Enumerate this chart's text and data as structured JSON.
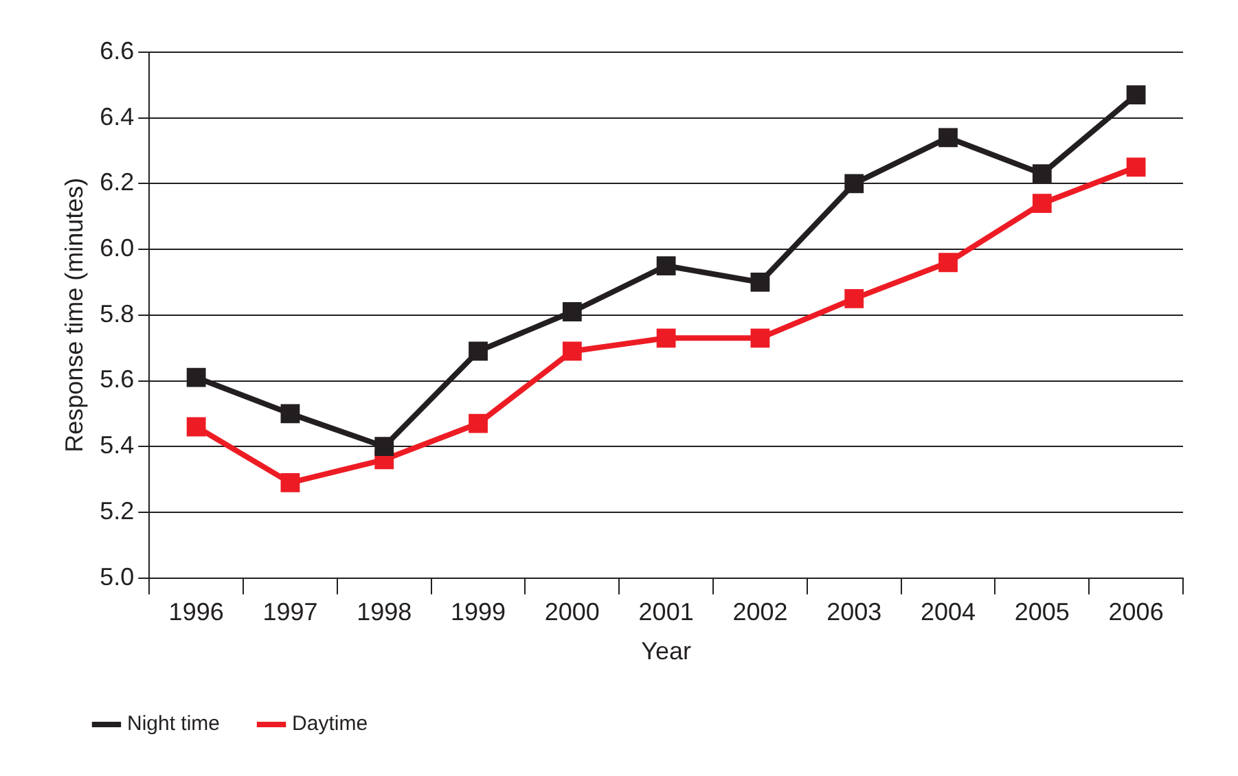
{
  "chart_data": {
    "type": "line",
    "xlabel": "Year",
    "ylabel": "Response time (minutes)",
    "categories": [
      "1996",
      "1997",
      "1998",
      "1999",
      "2000",
      "2001",
      "2002",
      "2003",
      "2004",
      "2005",
      "2006"
    ],
    "series": [
      {
        "name": "Night time",
        "color": "#231f20",
        "values": [
          5.61,
          5.5,
          5.4,
          5.69,
          5.81,
          5.95,
          5.9,
          6.2,
          6.34,
          6.23,
          6.47
        ]
      },
      {
        "name": "Daytime",
        "color": "#ed1c24",
        "values": [
          5.46,
          5.29,
          5.36,
          5.47,
          5.69,
          5.73,
          5.73,
          5.85,
          5.96,
          6.14,
          6.25
        ]
      }
    ],
    "ylim": [
      5.0,
      6.6
    ],
    "yticks": [
      {
        "value": 5.0,
        "label": "5.0"
      },
      {
        "value": 5.2,
        "label": "5.2"
      },
      {
        "value": 5.4,
        "label": "5.4"
      },
      {
        "value": 5.6,
        "label": "5.6"
      },
      {
        "value": 5.8,
        "label": "5.8"
      },
      {
        "value": 6.0,
        "label": "6.0"
      },
      {
        "value": 6.2,
        "label": "6.2"
      },
      {
        "value": 6.4,
        "label": "6.4"
      },
      {
        "value": 6.6,
        "label": "6.6"
      }
    ],
    "grid": "y",
    "legend": "bottom left",
    "marker": "square",
    "line_style": "solid"
  }
}
